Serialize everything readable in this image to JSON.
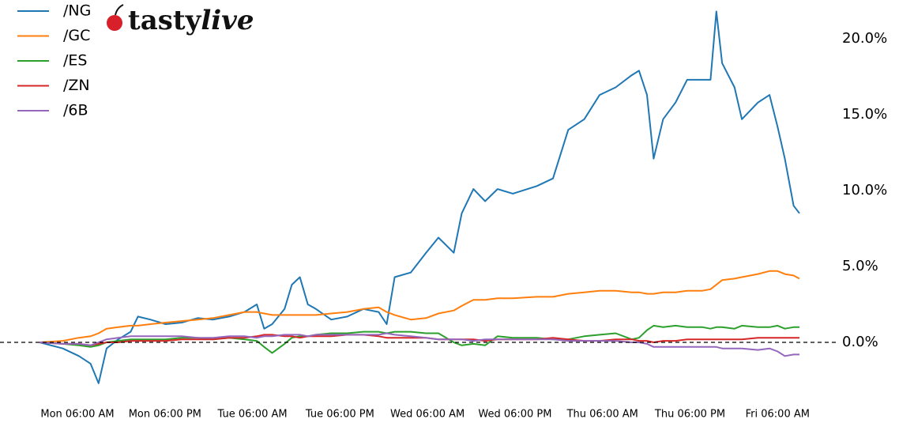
{
  "chart_data": {
    "type": "line",
    "logo": [
      "tasty",
      "live"
    ],
    "x": [
      0.8,
      4,
      6.2,
      7.8,
      8.9,
      10,
      11.6,
      13.3,
      14.3,
      16,
      18.1,
      20.3,
      22.5,
      24.6,
      26.8,
      28.9,
      30.6,
      31.6,
      32.7,
      34.4,
      35.4,
      36.5,
      37.6,
      38.7,
      40.8,
      43,
      45.2,
      47.3,
      48.4,
      49.5,
      51.7,
      53.8,
      55.5,
      57.6,
      58.7,
      60.3,
      61.9,
      63.6,
      65.7,
      69,
      71.2,
      73.3,
      75.5,
      77.6,
      79.8,
      82,
      83,
      84.1,
      85,
      86.3,
      88,
      89.6,
      91.7,
      92.8,
      93.6,
      94.4,
      96.1,
      97.1,
      99.3,
      100.9,
      102,
      103,
      104.2,
      105
    ],
    "series": [
      {
        "name": "/NG",
        "color": "#1f77b4",
        "values": [
          0,
          -0.4,
          -0.9,
          -1.4,
          -2.7,
          -0.4,
          0.2,
          0.7,
          1.7,
          1.5,
          1.2,
          1.3,
          1.6,
          1.5,
          1.7,
          2.0,
          2.5,
          0.9,
          1.2,
          2.2,
          3.8,
          4.3,
          2.5,
          2.2,
          1.5,
          1.7,
          2.2,
          2.0,
          1.2,
          4.3,
          4.6,
          5.9,
          6.9,
          5.9,
          8.5,
          10.1,
          9.3,
          10.1,
          9.8,
          10.3,
          10.8,
          14.0,
          14.7,
          16.3,
          16.8,
          17.6,
          17.9,
          16.3,
          12.1,
          14.7,
          15.8,
          17.3,
          17.3,
          17.3,
          21.8,
          18.4,
          16.8,
          14.7,
          15.8,
          16.3,
          14.2,
          12.1,
          9.0,
          8.5
        ]
      },
      {
        "name": "/GC",
        "color": "#ff7f0e",
        "values": [
          0,
          0.1,
          0.3,
          0.4,
          0.6,
          0.9,
          1.0,
          1.1,
          1.1,
          1.2,
          1.3,
          1.4,
          1.5,
          1.6,
          1.8,
          2.0,
          2.0,
          1.9,
          1.8,
          1.8,
          1.8,
          1.8,
          1.8,
          1.8,
          1.9,
          2.0,
          2.2,
          2.3,
          2.0,
          1.8,
          1.5,
          1.6,
          1.9,
          2.1,
          2.4,
          2.8,
          2.8,
          2.9,
          2.9,
          3.0,
          3.0,
          3.2,
          3.3,
          3.4,
          3.4,
          3.3,
          3.3,
          3.2,
          3.2,
          3.3,
          3.3,
          3.4,
          3.4,
          3.5,
          3.8,
          4.1,
          4.2,
          4.3,
          4.5,
          4.7,
          4.7,
          4.5,
          4.4,
          4.2
        ]
      },
      {
        "name": "/ES",
        "color": "#2ca02c",
        "values": [
          0,
          -0.1,
          -0.2,
          -0.3,
          -0.2,
          0,
          0.1,
          0.2,
          0.2,
          0.2,
          0.2,
          0.3,
          0.3,
          0.2,
          0.3,
          0.2,
          0.1,
          -0.3,
          -0.7,
          -0.1,
          0.3,
          0.4,
          0.4,
          0.5,
          0.6,
          0.6,
          0.7,
          0.7,
          0.6,
          0.7,
          0.7,
          0.6,
          0.6,
          0,
          -0.2,
          -0.1,
          -0.2,
          0.4,
          0.3,
          0.3,
          0.2,
          0.2,
          0.4,
          0.5,
          0.6,
          0.2,
          0.3,
          0.8,
          1.1,
          1.0,
          1.1,
          1.0,
          1.0,
          0.9,
          1.0,
          1.0,
          0.9,
          1.1,
          1.0,
          1.0,
          1.1,
          0.9,
          1.0,
          1.0
        ]
      },
      {
        "name": "/ZN",
        "color": "#d62728",
        "values": [
          0,
          -0.1,
          -0.1,
          -0.2,
          -0.1,
          0,
          0,
          0.1,
          0.1,
          0.1,
          0.1,
          0.2,
          0.2,
          0.2,
          0.3,
          0.3,
          0.4,
          0.5,
          0.5,
          0.4,
          0.4,
          0.3,
          0.4,
          0.4,
          0.4,
          0.5,
          0.5,
          0.4,
          0.3,
          0.3,
          0.3,
          0.3,
          0.2,
          0.2,
          0.2,
          0.2,
          0.1,
          0.2,
          0.2,
          0.2,
          0.3,
          0.2,
          0.1,
          0.1,
          0.2,
          0.2,
          0.1,
          0.1,
          0,
          0.1,
          0.1,
          0.2,
          0.2,
          0.2,
          0.2,
          0.2,
          0.2,
          0.2,
          0.3,
          0.3,
          0.3,
          0.3,
          0.3,
          0.3
        ]
      },
      {
        "name": "/6B",
        "color": "#9467bd",
        "values": [
          0,
          -0.1,
          -0.1,
          -0.2,
          0,
          0.2,
          0.3,
          0.4,
          0.4,
          0.4,
          0.4,
          0.4,
          0.3,
          0.3,
          0.4,
          0.4,
          0.3,
          0.4,
          0.4,
          0.5,
          0.5,
          0.5,
          0.4,
          0.5,
          0.5,
          0.5,
          0.5,
          0.5,
          0.6,
          0.5,
          0.4,
          0.3,
          0.2,
          0.2,
          0.2,
          0.1,
          0.2,
          0.2,
          0.2,
          0.2,
          0.2,
          0.1,
          0.1,
          0.1,
          0.1,
          0,
          0,
          -0.1,
          -0.3,
          -0.3,
          -0.3,
          -0.3,
          -0.3,
          -0.3,
          -0.3,
          -0.4,
          -0.4,
          -0.4,
          -0.5,
          -0.4,
          -0.6,
          -0.9,
          -0.8,
          -0.8
        ]
      }
    ],
    "xlim": [
      0.8,
      105
    ],
    "xticks": [
      {
        "value": 6,
        "label": "Mon 06:00 AM"
      },
      {
        "value": 18,
        "label": "Mon 06:00 PM"
      },
      {
        "value": 30,
        "label": "Tue 06:00 AM"
      },
      {
        "value": 42,
        "label": "Tue 06:00 PM"
      },
      {
        "value": 54,
        "label": "Wed 06:00 AM"
      },
      {
        "value": 66,
        "label": "Wed 06:00 PM"
      },
      {
        "value": 78,
        "label": "Thu 06:00 AM"
      },
      {
        "value": 90,
        "label": "Thu 06:00 PM"
      },
      {
        "value": 102,
        "label": "Fri 06:00 AM"
      }
    ],
    "ylim": [
      -3,
      22.2
    ],
    "yticks": [
      {
        "value": 0,
        "label": "0.0%"
      },
      {
        "value": 5,
        "label": "5.0%"
      },
      {
        "value": 10,
        "label": "10.0%"
      },
      {
        "value": 15,
        "label": "15.0%"
      },
      {
        "value": 20,
        "label": "20.0%"
      }
    ],
    "y_axis_side": "right",
    "reference_line": {
      "value": 0,
      "style": "dashed",
      "color": "#000000"
    },
    "legend": "upper-left",
    "grid": false
  }
}
